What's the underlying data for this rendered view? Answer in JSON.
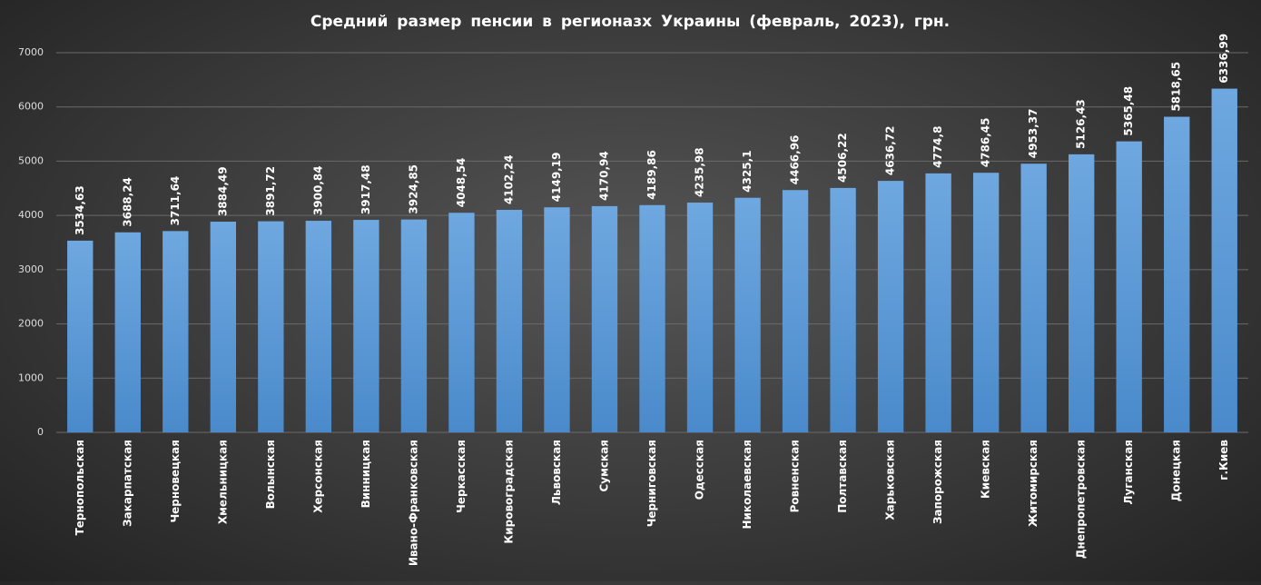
{
  "chart_data": {
    "type": "bar",
    "title": "Средний размер пенсии в регионазх Украины (февраль, 2023), грн.",
    "categories": [
      "Тернопольская",
      "Закарпатская",
      "Черновецкая",
      "Хмельницкая",
      "Волынская",
      "Херсонская",
      "Винницкая",
      "Ивано-Франковская",
      "Черкасская",
      "Кировоградская",
      "Львовская",
      "Сумская",
      "Черниговская",
      "Одесская",
      "Николаевская",
      "Ровненская",
      "Полтавская",
      "Харьковская",
      "Запорожская",
      "Киевская",
      "Житомирская",
      "Днепропетровская",
      "Луганская",
      "Донецкая",
      "г.Киев"
    ],
    "values": [
      3534.63,
      3688.24,
      3711.64,
      3884.49,
      3891.72,
      3900.84,
      3917.48,
      3924.85,
      4048.54,
      4102.24,
      4149.19,
      4170.94,
      4189.86,
      4235.98,
      4325.1,
      4466.96,
      4506.22,
      4636.72,
      4774.8,
      4786.45,
      4953.37,
      5126.43,
      5365.48,
      5818.65,
      6336.99
    ],
    "value_labels": [
      "3534,63",
      "3688,24",
      "3711,64",
      "3884,49",
      "3891,72",
      "3900,84",
      "3917,48",
      "3924,85",
      "4048,54",
      "4102,24",
      "4149,19",
      "4170,94",
      "4189,86",
      "4235,98",
      "4325,1",
      "4466,96",
      "4506,22",
      "4636,72",
      "4774,8",
      "4786,45",
      "4953,37",
      "5126,43",
      "5365,48",
      "5818,65",
      "6336,99"
    ],
    "color": "#5b9bd5",
    "ylim": [
      0,
      7000
    ],
    "yticks": [
      0,
      1000,
      2000,
      3000,
      4000,
      5000,
      6000,
      7000
    ],
    "grid": true
  }
}
